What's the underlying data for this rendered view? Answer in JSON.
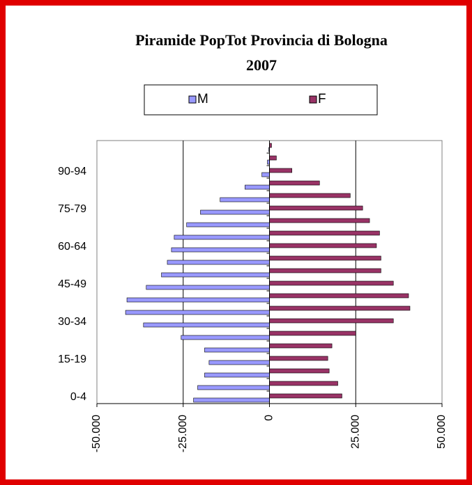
{
  "chart_data": {
    "type": "bar",
    "orientation": "horizontal",
    "title": [
      "Piramide PopTot Provincia di Bologna",
      "2007"
    ],
    "categories": [
      "0-4",
      null,
      null,
      "15-19",
      null,
      null,
      "30-34",
      null,
      null,
      "45-49",
      null,
      null,
      "60-64",
      null,
      null,
      "75-79",
      null,
      null,
      "90-94",
      null,
      null
    ],
    "series": [
      {
        "name": "M",
        "color": "#9999ff",
        "values": [
          -22000,
          -20800,
          -18800,
          -17500,
          -18800,
          -25600,
          -36500,
          -41700,
          -41300,
          -35700,
          -31300,
          -29600,
          -28400,
          -27600,
          -24000,
          -20000,
          -14300,
          -7100,
          -2200,
          -600,
          -200
        ]
      },
      {
        "name": "F",
        "color": "#993366",
        "values": [
          21000,
          19800,
          17300,
          16900,
          18100,
          25000,
          35900,
          40700,
          40300,
          35900,
          32300,
          32300,
          31000,
          31900,
          29000,
          27000,
          23400,
          14500,
          6500,
          2000,
          600
        ]
      }
    ],
    "xlim": [
      -50000,
      50000
    ],
    "xticks": [
      {
        "value": -50000,
        "label": "-50.000"
      },
      {
        "value": -25000,
        "label": "-25.000"
      },
      0,
      {
        "value": 25000,
        "label": "25.000"
      },
      {
        "value": 50000,
        "label": "50.000"
      }
    ],
    "grid": true,
    "legend": "top"
  }
}
